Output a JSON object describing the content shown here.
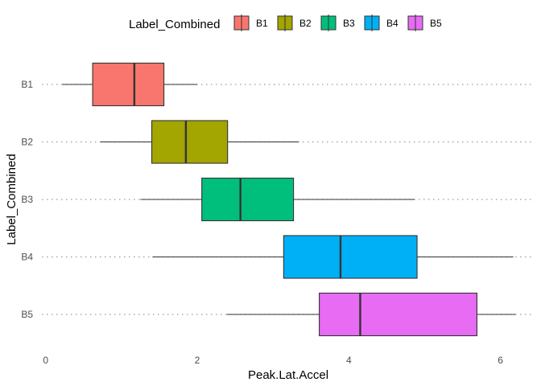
{
  "chart_data": {
    "type": "boxplot",
    "orientation": "horizontal",
    "title": "",
    "xlabel": "Peak.Lat.Accel",
    "ylabel": "Label_Combined",
    "xlim": [
      -0.05,
      6.45
    ],
    "xticks": [
      0,
      2,
      4,
      6
    ],
    "grid": "dotted horizontal lines at each category",
    "legend": {
      "title": "Label_Combined",
      "position": "top",
      "items": [
        "B1",
        "B2",
        "B3",
        "B4",
        "B5"
      ]
    },
    "categories": [
      "B1",
      "B2",
      "B3",
      "B4",
      "B5"
    ],
    "boxes": [
      {
        "label": "B1",
        "whisker_low": 0.22,
        "q1": 0.62,
        "median": 1.17,
        "q3": 1.56,
        "whisker_high": 2.0,
        "color": "#F8766D"
      },
      {
        "label": "B2",
        "whisker_low": 0.72,
        "q1": 1.4,
        "median": 1.85,
        "q3": 2.4,
        "whisker_high": 3.34,
        "color": "#A3A500"
      },
      {
        "label": "B3",
        "whisker_low": 1.25,
        "q1": 2.06,
        "median": 2.57,
        "q3": 3.27,
        "whisker_high": 4.87,
        "color": "#00BF7D"
      },
      {
        "label": "B4",
        "whisker_low": 1.41,
        "q1": 3.14,
        "median": 3.89,
        "q3": 4.9,
        "whisker_high": 6.17,
        "color": "#00B0F6"
      },
      {
        "label": "B5",
        "whisker_low": 2.39,
        "q1": 3.61,
        "median": 4.15,
        "q3": 5.69,
        "whisker_high": 6.2,
        "color": "#E76BF3"
      }
    ]
  }
}
